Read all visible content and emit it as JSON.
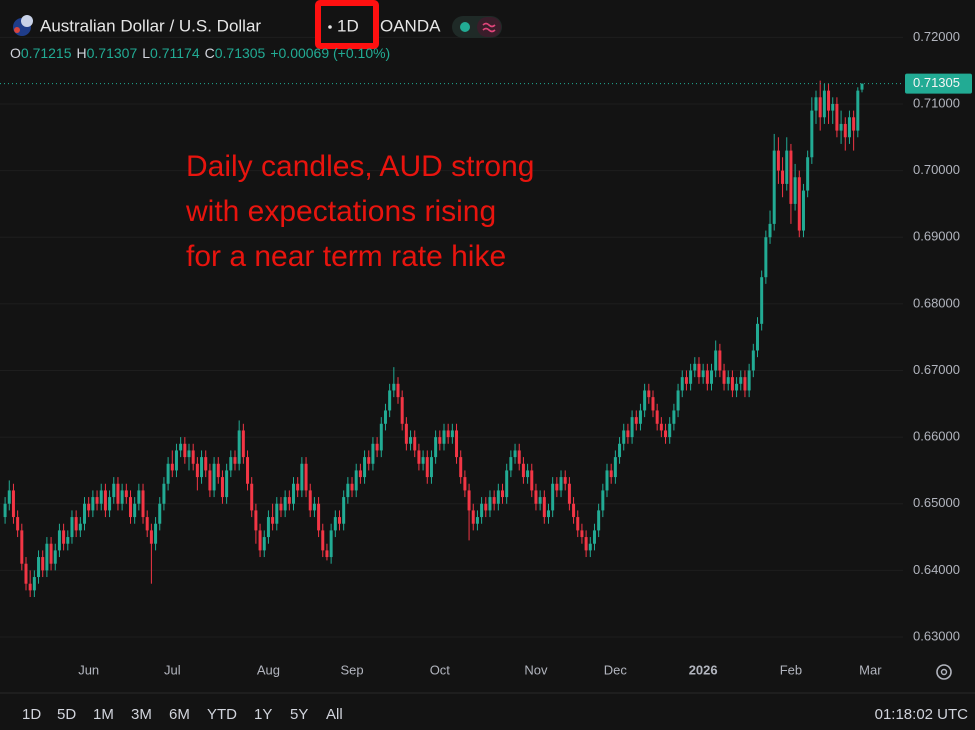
{
  "header": {
    "symbol": "Australian Dollar / U.S. Dollar",
    "interval": "1D",
    "exchange": "OANDA",
    "ohlc_labels": [
      "O",
      "H",
      "L",
      "C"
    ],
    "change": "+0.00069 (+0.10%)"
  },
  "chart_data": {
    "type": "candlestick",
    "annotation": [
      "Daily candles, AUD strong",
      "with expectations rising",
      "for a near term rate hike"
    ],
    "annotation_color": "#e8140e",
    "up_color": "#22ab94",
    "down_color": "#f23645",
    "grid": true,
    "ylim": [
      0.6273,
      0.7256
    ],
    "yticks": [
      {
        "value": 0.63,
        "label": "0.63000"
      },
      {
        "value": 0.64,
        "label": "0.64000"
      },
      {
        "value": 0.65,
        "label": "0.65000"
      },
      {
        "value": 0.66,
        "label": "0.66000"
      },
      {
        "value": 0.67,
        "label": "0.67000"
      },
      {
        "value": 0.68,
        "label": "0.68000"
      },
      {
        "value": 0.69,
        "label": "0.69000"
      },
      {
        "value": 0.7,
        "label": "0.70000"
      },
      {
        "value": 0.71,
        "label": "0.71000"
      },
      {
        "value": 0.72,
        "label": "0.72000"
      }
    ],
    "categories": [
      null,
      null,
      null,
      null,
      null,
      null,
      null,
      null,
      null,
      null,
      null,
      null,
      null,
      null,
      null,
      null,
      null,
      null,
      null,
      null,
      "Jun",
      null,
      null,
      null,
      null,
      null,
      null,
      null,
      null,
      null,
      null,
      null,
      null,
      null,
      null,
      null,
      null,
      null,
      null,
      null,
      "Jul",
      null,
      null,
      null,
      null,
      null,
      null,
      null,
      null,
      null,
      null,
      null,
      null,
      null,
      null,
      null,
      null,
      null,
      null,
      null,
      null,
      null,
      null,
      "Aug",
      null,
      null,
      null,
      null,
      null,
      null,
      null,
      null,
      null,
      null,
      null,
      null,
      null,
      null,
      null,
      null,
      null,
      null,
      null,
      "Sep",
      null,
      null,
      null,
      null,
      null,
      null,
      null,
      null,
      null,
      null,
      null,
      null,
      null,
      null,
      null,
      null,
      null,
      null,
      null,
      null,
      "Oct",
      null,
      null,
      null,
      null,
      null,
      null,
      null,
      null,
      null,
      null,
      null,
      null,
      null,
      null,
      null,
      null,
      null,
      null,
      null,
      null,
      null,
      null,
      "Nov",
      null,
      null,
      null,
      null,
      null,
      null,
      null,
      null,
      null,
      null,
      null,
      null,
      null,
      null,
      null,
      null,
      null,
      null,
      "Dec",
      null,
      null,
      null,
      null,
      null,
      null,
      null,
      null,
      null,
      null,
      null,
      null,
      null,
      null,
      null,
      null,
      null,
      null,
      null,
      null,
      "2026",
      null,
      null,
      null,
      null,
      null,
      null,
      null,
      null,
      null,
      null,
      null,
      null,
      null,
      null,
      null,
      null,
      null,
      null,
      null,
      null,
      "Feb",
      null,
      null,
      null,
      null,
      null,
      null,
      null,
      null,
      null,
      null,
      null,
      null,
      null,
      null,
      null,
      null,
      null,
      null,
      "Mar"
    ],
    "candles": [
      [
        0.648,
        0.651,
        0.647,
        0.65
      ],
      [
        0.65,
        0.6535,
        0.649,
        0.652
      ],
      [
        0.652,
        0.653,
        0.647,
        0.648
      ],
      [
        0.648,
        0.649,
        0.645,
        0.646
      ],
      [
        0.646,
        0.647,
        0.64,
        0.641
      ],
      [
        0.641,
        0.642,
        0.637,
        0.638
      ],
      [
        0.638,
        0.64,
        0.636,
        0.637
      ],
      [
        0.637,
        0.64,
        0.636,
        0.639
      ],
      [
        0.639,
        0.643,
        0.638,
        0.642
      ],
      [
        0.642,
        0.643,
        0.639,
        0.64
      ],
      [
        0.64,
        0.645,
        0.639,
        0.644
      ],
      [
        0.644,
        0.645,
        0.64,
        0.641
      ],
      [
        0.641,
        0.644,
        0.64,
        0.643
      ],
      [
        0.643,
        0.647,
        0.642,
        0.646
      ],
      [
        0.646,
        0.647,
        0.643,
        0.644
      ],
      [
        0.644,
        0.646,
        0.643,
        0.645
      ],
      [
        0.645,
        0.649,
        0.644,
        0.648
      ],
      [
        0.648,
        0.649,
        0.645,
        0.646
      ],
      [
        0.646,
        0.648,
        0.645,
        0.647
      ],
      [
        0.647,
        0.651,
        0.646,
        0.65
      ],
      [
        0.65,
        0.651,
        0.648,
        0.649
      ],
      [
        0.649,
        0.652,
        0.648,
        0.651
      ],
      [
        0.651,
        0.652,
        0.649,
        0.65
      ],
      [
        0.65,
        0.653,
        0.649,
        0.652
      ],
      [
        0.652,
        0.653,
        0.648,
        0.649
      ],
      [
        0.649,
        0.652,
        0.648,
        0.651
      ],
      [
        0.651,
        0.654,
        0.65,
        0.653
      ],
      [
        0.653,
        0.654,
        0.649,
        0.65
      ],
      [
        0.65,
        0.653,
        0.649,
        0.652
      ],
      [
        0.652,
        0.653,
        0.65,
        0.651
      ],
      [
        0.651,
        0.652,
        0.647,
        0.648
      ],
      [
        0.648,
        0.651,
        0.647,
        0.65
      ],
      [
        0.65,
        0.653,
        0.649,
        0.652
      ],
      [
        0.652,
        0.653,
        0.647,
        0.648
      ],
      [
        0.648,
        0.649,
        0.645,
        0.646
      ],
      [
        0.646,
        0.647,
        0.638,
        0.644
      ],
      [
        0.644,
        0.648,
        0.643,
        0.647
      ],
      [
        0.647,
        0.651,
        0.646,
        0.65
      ],
      [
        0.65,
        0.654,
        0.649,
        0.653
      ],
      [
        0.653,
        0.657,
        0.652,
        0.656
      ],
      [
        0.656,
        0.658,
        0.654,
        0.655
      ],
      [
        0.655,
        0.659,
        0.654,
        0.658
      ],
      [
        0.658,
        0.66,
        0.657,
        0.659
      ],
      [
        0.659,
        0.66,
        0.656,
        0.657
      ],
      [
        0.657,
        0.659,
        0.655,
        0.658
      ],
      [
        0.658,
        0.659,
        0.655,
        0.656
      ],
      [
        0.656,
        0.657,
        0.652,
        0.654
      ],
      [
        0.654,
        0.658,
        0.653,
        0.657
      ],
      [
        0.657,
        0.658,
        0.654,
        0.655
      ],
      [
        0.655,
        0.656,
        0.651,
        0.652
      ],
      [
        0.652,
        0.657,
        0.651,
        0.656
      ],
      [
        0.656,
        0.657,
        0.653,
        0.654
      ],
      [
        0.654,
        0.655,
        0.65,
        0.651
      ],
      [
        0.651,
        0.656,
        0.65,
        0.655
      ],
      [
        0.655,
        0.658,
        0.654,
        0.657
      ],
      [
        0.657,
        0.658,
        0.655,
        0.656
      ],
      [
        0.656,
        0.6625,
        0.655,
        0.661
      ],
      [
        0.661,
        0.662,
        0.656,
        0.657
      ],
      [
        0.657,
        0.658,
        0.652,
        0.653
      ],
      [
        0.653,
        0.654,
        0.648,
        0.649
      ],
      [
        0.649,
        0.65,
        0.644,
        0.646
      ],
      [
        0.646,
        0.647,
        0.642,
        0.643
      ],
      [
        0.643,
        0.646,
        0.642,
        0.645
      ],
      [
        0.645,
        0.649,
        0.644,
        0.648
      ],
      [
        0.648,
        0.65,
        0.646,
        0.647
      ],
      [
        0.647,
        0.651,
        0.646,
        0.65
      ],
      [
        0.65,
        0.651,
        0.648,
        0.649
      ],
      [
        0.649,
        0.652,
        0.648,
        0.651
      ],
      [
        0.651,
        0.652,
        0.649,
        0.65
      ],
      [
        0.65,
        0.654,
        0.649,
        0.653
      ],
      [
        0.653,
        0.654,
        0.651,
        0.652
      ],
      [
        0.652,
        0.657,
        0.651,
        0.656
      ],
      [
        0.656,
        0.657,
        0.651,
        0.652
      ],
      [
        0.652,
        0.653,
        0.648,
        0.649
      ],
      [
        0.649,
        0.651,
        0.648,
        0.65
      ],
      [
        0.65,
        0.651,
        0.645,
        0.646
      ],
      [
        0.646,
        0.647,
        0.642,
        0.643
      ],
      [
        0.643,
        0.644,
        0.6415,
        0.642
      ],
      [
        0.642,
        0.647,
        0.641,
        0.646
      ],
      [
        0.646,
        0.649,
        0.645,
        0.648
      ],
      [
        0.648,
        0.649,
        0.646,
        0.647
      ],
      [
        0.647,
        0.652,
        0.646,
        0.651
      ],
      [
        0.651,
        0.654,
        0.65,
        0.653
      ],
      [
        0.653,
        0.654,
        0.651,
        0.652
      ],
      [
        0.652,
        0.656,
        0.651,
        0.655
      ],
      [
        0.655,
        0.656,
        0.653,
        0.654
      ],
      [
        0.654,
        0.658,
        0.653,
        0.657
      ],
      [
        0.657,
        0.658,
        0.655,
        0.656
      ],
      [
        0.656,
        0.66,
        0.655,
        0.659
      ],
      [
        0.659,
        0.66,
        0.657,
        0.658
      ],
      [
        0.658,
        0.663,
        0.657,
        0.662
      ],
      [
        0.662,
        0.665,
        0.661,
        0.664
      ],
      [
        0.664,
        0.668,
        0.663,
        0.667
      ],
      [
        0.667,
        0.6705,
        0.666,
        0.668
      ],
      [
        0.668,
        0.669,
        0.665,
        0.666
      ],
      [
        0.666,
        0.667,
        0.661,
        0.662
      ],
      [
        0.662,
        0.663,
        0.658,
        0.659
      ],
      [
        0.659,
        0.661,
        0.658,
        0.66
      ],
      [
        0.66,
        0.661,
        0.657,
        0.658
      ],
      [
        0.658,
        0.659,
        0.655,
        0.656
      ],
      [
        0.656,
        0.658,
        0.655,
        0.657
      ],
      [
        0.657,
        0.658,
        0.653,
        0.654
      ],
      [
        0.654,
        0.658,
        0.653,
        0.657
      ],
      [
        0.657,
        0.661,
        0.656,
        0.66
      ],
      [
        0.66,
        0.661,
        0.658,
        0.659
      ],
      [
        0.659,
        0.662,
        0.658,
        0.661
      ],
      [
        0.661,
        0.662,
        0.659,
        0.66
      ],
      [
        0.66,
        0.662,
        0.659,
        0.661
      ],
      [
        0.661,
        0.662,
        0.656,
        0.657
      ],
      [
        0.657,
        0.658,
        0.653,
        0.654
      ],
      [
        0.654,
        0.655,
        0.651,
        0.652
      ],
      [
        0.652,
        0.653,
        0.6445,
        0.649
      ],
      [
        0.649,
        0.65,
        0.646,
        0.647
      ],
      [
        0.647,
        0.649,
        0.646,
        0.648
      ],
      [
        0.648,
        0.651,
        0.647,
        0.65
      ],
      [
        0.65,
        0.651,
        0.648,
        0.649
      ],
      [
        0.649,
        0.652,
        0.648,
        0.651
      ],
      [
        0.651,
        0.652,
        0.649,
        0.65
      ],
      [
        0.65,
        0.653,
        0.649,
        0.652
      ],
      [
        0.652,
        0.653,
        0.65,
        0.651
      ],
      [
        0.651,
        0.656,
        0.65,
        0.655
      ],
      [
        0.655,
        0.658,
        0.654,
        0.657
      ],
      [
        0.657,
        0.659,
        0.656,
        0.658
      ],
      [
        0.658,
        0.659,
        0.655,
        0.656
      ],
      [
        0.656,
        0.657,
        0.653,
        0.654
      ],
      [
        0.654,
        0.656,
        0.653,
        0.655
      ],
      [
        0.655,
        0.656,
        0.651,
        0.652
      ],
      [
        0.652,
        0.653,
        0.649,
        0.65
      ],
      [
        0.65,
        0.652,
        0.649,
        0.651
      ],
      [
        0.651,
        0.652,
        0.647,
        0.648
      ],
      [
        0.648,
        0.65,
        0.647,
        0.649
      ],
      [
        0.649,
        0.654,
        0.648,
        0.653
      ],
      [
        0.653,
        0.654,
        0.651,
        0.652
      ],
      [
        0.652,
        0.655,
        0.651,
        0.654
      ],
      [
        0.654,
        0.655,
        0.652,
        0.653
      ],
      [
        0.653,
        0.654,
        0.649,
        0.65
      ],
      [
        0.65,
        0.651,
        0.647,
        0.648
      ],
      [
        0.648,
        0.649,
        0.645,
        0.646
      ],
      [
        0.646,
        0.647,
        0.644,
        0.645
      ],
      [
        0.645,
        0.646,
        0.642,
        0.643
      ],
      [
        0.643,
        0.645,
        0.642,
        0.644
      ],
      [
        0.644,
        0.647,
        0.643,
        0.646
      ],
      [
        0.646,
        0.65,
        0.645,
        0.649
      ],
      [
        0.649,
        0.653,
        0.648,
        0.652
      ],
      [
        0.652,
        0.656,
        0.651,
        0.655
      ],
      [
        0.655,
        0.656,
        0.653,
        0.654
      ],
      [
        0.654,
        0.658,
        0.653,
        0.657
      ],
      [
        0.657,
        0.66,
        0.656,
        0.659
      ],
      [
        0.659,
        0.662,
        0.658,
        0.661
      ],
      [
        0.661,
        0.662,
        0.659,
        0.66
      ],
      [
        0.66,
        0.664,
        0.659,
        0.663
      ],
      [
        0.663,
        0.664,
        0.661,
        0.662
      ],
      [
        0.662,
        0.665,
        0.661,
        0.664
      ],
      [
        0.664,
        0.668,
        0.663,
        0.667
      ],
      [
        0.667,
        0.668,
        0.665,
        0.666
      ],
      [
        0.666,
        0.667,
        0.663,
        0.664
      ],
      [
        0.664,
        0.665,
        0.661,
        0.662
      ],
      [
        0.662,
        0.663,
        0.66,
        0.661
      ],
      [
        0.661,
        0.662,
        0.659,
        0.66
      ],
      [
        0.66,
        0.663,
        0.659,
        0.662
      ],
      [
        0.662,
        0.665,
        0.661,
        0.664
      ],
      [
        0.664,
        0.668,
        0.663,
        0.667
      ],
      [
        0.667,
        0.67,
        0.666,
        0.669
      ],
      [
        0.669,
        0.67,
        0.667,
        0.668
      ],
      [
        0.668,
        0.671,
        0.667,
        0.67
      ],
      [
        0.67,
        0.672,
        0.669,
        0.671
      ],
      [
        0.671,
        0.672,
        0.668,
        0.669
      ],
      [
        0.669,
        0.671,
        0.668,
        0.67
      ],
      [
        0.67,
        0.671,
        0.667,
        0.668
      ],
      [
        0.668,
        0.671,
        0.667,
        0.67
      ],
      [
        0.67,
        0.6745,
        0.669,
        0.673
      ],
      [
        0.673,
        0.674,
        0.669,
        0.67
      ],
      [
        0.67,
        0.671,
        0.667,
        0.668
      ],
      [
        0.668,
        0.67,
        0.667,
        0.669
      ],
      [
        0.669,
        0.67,
        0.666,
        0.667
      ],
      [
        0.667,
        0.669,
        0.666,
        0.668
      ],
      [
        0.668,
        0.67,
        0.667,
        0.669
      ],
      [
        0.669,
        0.67,
        0.666,
        0.667
      ],
      [
        0.667,
        0.671,
        0.666,
        0.67
      ],
      [
        0.67,
        0.674,
        0.669,
        0.673
      ],
      [
        0.673,
        0.678,
        0.672,
        0.677
      ],
      [
        0.677,
        0.685,
        0.676,
        0.684
      ],
      [
        0.684,
        0.691,
        0.683,
        0.69
      ],
      [
        0.69,
        0.694,
        0.689,
        0.692
      ],
      [
        0.692,
        0.7055,
        0.691,
        0.703
      ],
      [
        0.703,
        0.705,
        0.698,
        0.7
      ],
      [
        0.7,
        0.702,
        0.696,
        0.698
      ],
      [
        0.698,
        0.705,
        0.697,
        0.703
      ],
      [
        0.703,
        0.704,
        0.692,
        0.695
      ],
      [
        0.695,
        0.701,
        0.694,
        0.699
      ],
      [
        0.699,
        0.7,
        0.69,
        0.691
      ],
      [
        0.691,
        0.698,
        0.69,
        0.697
      ],
      [
        0.697,
        0.703,
        0.696,
        0.702
      ],
      [
        0.702,
        0.711,
        0.701,
        0.709
      ],
      [
        0.709,
        0.712,
        0.707,
        0.711
      ],
      [
        0.711,
        0.7135,
        0.706,
        0.708
      ],
      [
        0.708,
        0.713,
        0.707,
        0.712
      ],
      [
        0.712,
        0.713,
        0.707,
        0.709
      ],
      [
        0.709,
        0.711,
        0.707,
        0.71
      ],
      [
        0.71,
        0.711,
        0.705,
        0.706
      ],
      [
        0.706,
        0.709,
        0.704,
        0.707
      ],
      [
        0.707,
        0.708,
        0.703,
        0.705
      ],
      [
        0.705,
        0.709,
        0.704,
        0.708
      ],
      [
        0.708,
        0.709,
        0.703,
        0.706
      ],
      [
        0.706,
        0.7125,
        0.705,
        0.712
      ],
      [
        0.71215,
        0.71307,
        0.71174,
        0.71305
      ],
      null,
      null
    ]
  },
  "toolbar": {
    "ranges": [
      "1D",
      "5D",
      "1M",
      "3M",
      "6M",
      "YTD",
      "1Y",
      "5Y",
      "All"
    ],
    "clock": "01:18:02 UTC"
  }
}
